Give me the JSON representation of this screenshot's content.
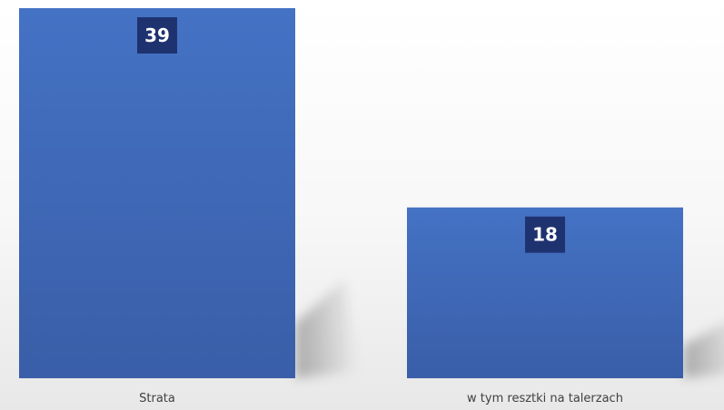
{
  "chart_data": {
    "type": "bar",
    "categories": [
      "Strata",
      "w tym resztki na talerzach"
    ],
    "values": [
      39,
      18
    ],
    "title": "",
    "xlabel": "",
    "ylabel": "",
    "ylim": [
      0,
      39
    ],
    "grid": false,
    "legend": "none",
    "data_labels": true,
    "colors": {
      "bar_top": "#4472c4",
      "bar_bottom": "#3a5ea8",
      "label_box": "#1f3270",
      "label_text": "#ffffff",
      "category_text": "#404040"
    }
  }
}
